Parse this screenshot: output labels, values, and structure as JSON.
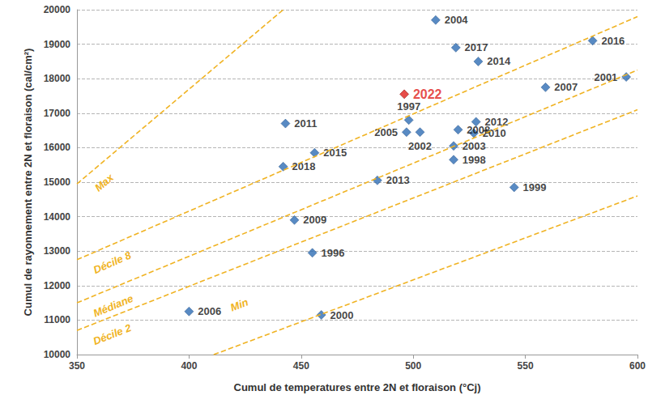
{
  "chart_data": {
    "type": "scatter",
    "x_label": "Cumul de temperatures entre 2N et floraison (°Cj)",
    "y_label": "Cumul de rayonnement entre 2N et floraison (cal/cm²)",
    "x": [
      510,
      519,
      529,
      580,
      559,
      595,
      496,
      443,
      498,
      497,
      503,
      528,
      520,
      527,
      518,
      518,
      545,
      456,
      442,
      484,
      447,
      455,
      400,
      459
    ],
    "values": [
      19700,
      18900,
      18500,
      19100,
      17750,
      18050,
      17550,
      16700,
      16800,
      16450,
      16450,
      16750,
      16520,
      16420,
      16050,
      15650,
      14850,
      15850,
      15450,
      15050,
      13900,
      12950,
      11250,
      11150
    ],
    "point_labels": [
      "2004",
      "2017",
      "2014",
      "2016",
      "2007",
      "2001",
      "2022",
      "2011",
      "1997",
      "2005",
      "2002",
      "2012",
      "2008",
      "2010",
      "2003",
      "1998",
      "1999",
      "2015",
      "2018",
      "2013",
      "2009",
      "1996",
      "2006",
      "2000"
    ],
    "colors": [
      "#2e6db4",
      "#2e6db4",
      "#2e6db4",
      "#2e6db4",
      "#2e6db4",
      "#2e6db4",
      "#e0201b",
      "#2e6db4",
      "#2e6db4",
      "#2e6db4",
      "#2e6db4",
      "#2e6db4",
      "#2e6db4",
      "#2e6db4",
      "#2e6db4",
      "#2e6db4",
      "#2e6db4",
      "#2e6db4",
      "#2e6db4",
      "#2e6db4",
      "#2e6db4",
      "#2e6db4",
      "#2e6db4",
      "#2e6db4"
    ],
    "marker": "diamond",
    "lines": [
      {
        "label": "Max",
        "points": [
          [
            350,
            14950
          ],
          [
            442,
            20000
          ]
        ],
        "color": "#f0b323",
        "line_style": "dashed"
      },
      {
        "label": "Décile 8",
        "points": [
          [
            350,
            12750
          ],
          [
            600,
            19800
          ]
        ],
        "color": "#f0b323",
        "line_style": "dashed"
      },
      {
        "label": "Médiane",
        "points": [
          [
            350,
            11500
          ],
          [
            600,
            18250
          ]
        ],
        "color": "#f0b323",
        "line_style": "dashed"
      },
      {
        "label": "Décile 2",
        "points": [
          [
            350,
            10700
          ],
          [
            600,
            17100
          ]
        ],
        "color": "#f0b323",
        "line_style": "dashed"
      },
      {
        "label": "Min",
        "points": [
          [
            411,
            10000
          ],
          [
            600,
            14600
          ]
        ],
        "color": "#f0b323",
        "line_style": "dashed"
      }
    ],
    "xlim": [
      350,
      600
    ],
    "xticks": [
      350,
      400,
      450,
      500,
      550,
      600
    ],
    "ylim": [
      10000,
      20000
    ],
    "yticks": [
      10000,
      11000,
      12000,
      13000,
      14000,
      15000,
      16000,
      17000,
      18000,
      19000,
      20000
    ],
    "grid": true
  }
}
